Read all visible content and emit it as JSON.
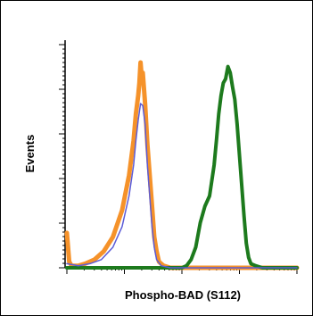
{
  "chart_data": {
    "type": "line",
    "title": "",
    "xlabel": "Phospho-BAD (S112)",
    "ylabel": "Events",
    "x_scale": "log",
    "xlim": [
      0,
      1
    ],
    "ylim": [
      0,
      1
    ],
    "grid": false,
    "legend": "none",
    "series": [
      {
        "color": "#5b5bd6",
        "points": [
          [
            0.0,
            0.02
          ],
          [
            0.05,
            0.01
          ],
          [
            0.1,
            0.02
          ],
          [
            0.15,
            0.04
          ],
          [
            0.2,
            0.1
          ],
          [
            0.24,
            0.2
          ],
          [
            0.27,
            0.35
          ],
          [
            0.29,
            0.5
          ],
          [
            0.3,
            0.62
          ],
          [
            0.31,
            0.72
          ],
          [
            0.32,
            0.8
          ],
          [
            0.33,
            0.79
          ],
          [
            0.34,
            0.7
          ],
          [
            0.35,
            0.5
          ],
          [
            0.36,
            0.35
          ],
          [
            0.37,
            0.2
          ],
          [
            0.38,
            0.1
          ],
          [
            0.39,
            0.04
          ],
          [
            0.41,
            0.01
          ],
          [
            0.45,
            0.0
          ],
          [
            1.0,
            0.0
          ]
        ]
      },
      {
        "color": "#f5922a",
        "points": [
          [
            0.0,
            0.17
          ],
          [
            0.005,
            0.1
          ],
          [
            0.01,
            0.03
          ],
          [
            0.02,
            0.01
          ],
          [
            0.05,
            0.01
          ],
          [
            0.08,
            0.02
          ],
          [
            0.12,
            0.04
          ],
          [
            0.16,
            0.08
          ],
          [
            0.2,
            0.15
          ],
          [
            0.24,
            0.28
          ],
          [
            0.27,
            0.45
          ],
          [
            0.29,
            0.62
          ],
          [
            0.3,
            0.75
          ],
          [
            0.31,
            0.84
          ],
          [
            0.315,
            0.9
          ],
          [
            0.32,
            1.0
          ],
          [
            0.325,
            0.93
          ],
          [
            0.33,
            0.95
          ],
          [
            0.34,
            0.8
          ],
          [
            0.35,
            0.6
          ],
          [
            0.36,
            0.45
          ],
          [
            0.37,
            0.3
          ],
          [
            0.38,
            0.15
          ],
          [
            0.39,
            0.08
          ],
          [
            0.4,
            0.03
          ],
          [
            0.42,
            0.01
          ],
          [
            0.45,
            0.0
          ],
          [
            1.0,
            0.0
          ]
        ]
      },
      {
        "color": "#1d7a1d",
        "points": [
          [
            0.0,
            0.0
          ],
          [
            0.5,
            0.0
          ],
          [
            0.52,
            0.01
          ],
          [
            0.54,
            0.04
          ],
          [
            0.56,
            0.1
          ],
          [
            0.58,
            0.22
          ],
          [
            0.6,
            0.3
          ],
          [
            0.62,
            0.35
          ],
          [
            0.64,
            0.5
          ],
          [
            0.65,
            0.62
          ],
          [
            0.66,
            0.75
          ],
          [
            0.67,
            0.84
          ],
          [
            0.68,
            0.9
          ],
          [
            0.69,
            0.92
          ],
          [
            0.7,
            0.98
          ],
          [
            0.71,
            0.95
          ],
          [
            0.72,
            0.88
          ],
          [
            0.73,
            0.82
          ],
          [
            0.74,
            0.7
          ],
          [
            0.75,
            0.55
          ],
          [
            0.76,
            0.4
          ],
          [
            0.77,
            0.25
          ],
          [
            0.78,
            0.12
          ],
          [
            0.79,
            0.05
          ],
          [
            0.8,
            0.02
          ],
          [
            0.82,
            0.01
          ],
          [
            0.85,
            0.0
          ],
          [
            1.0,
            0.0
          ]
        ]
      }
    ]
  }
}
